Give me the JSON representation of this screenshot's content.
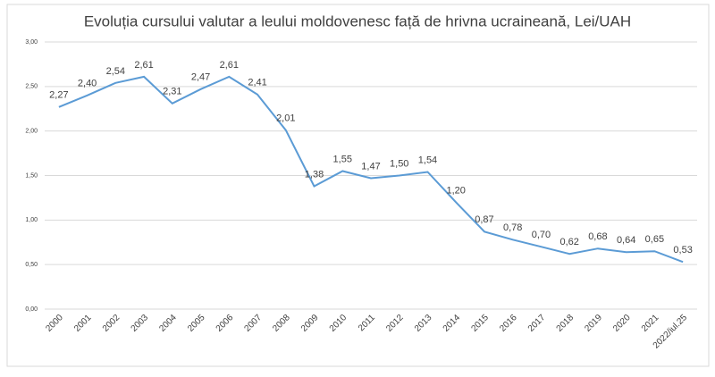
{
  "chart_data": {
    "type": "line",
    "title": "Evoluția cursului valutar a leului moldovenesc față de hrivna ucraineană, Lei/UAH",
    "categories": [
      "2000",
      "2001",
      "2002",
      "2003",
      "2004",
      "2005",
      "2006",
      "2007",
      "2008",
      "2009",
      "2010",
      "2011",
      "2012",
      "2013",
      "2014",
      "2015",
      "2016",
      "2017",
      "2018",
      "2019",
      "2020",
      "2021",
      "2022/iul.25"
    ],
    "series": [
      {
        "color": "#5b9bd5",
        "values": [
          2.27,
          2.4,
          2.54,
          2.61,
          2.31,
          2.47,
          2.61,
          2.41,
          2.01,
          1.38,
          1.55,
          1.47,
          1.5,
          1.54,
          1.2,
          0.87,
          0.78,
          0.7,
          0.62,
          0.68,
          0.64,
          0.65,
          0.53
        ],
        "value_labels": [
          "2,27",
          "2,40",
          "2,54",
          "2,61",
          "2,31",
          "2,47",
          "2,61",
          "2,41",
          "2,01",
          "1,38",
          "1,55",
          "1,47",
          "1,50",
          "1,54",
          "1,20",
          "0,87",
          "0,78",
          "0,70",
          "0,62",
          "0,68",
          "0,64",
          "0,65",
          "0,53"
        ]
      }
    ],
    "ylim": [
      0,
      3
    ],
    "yticks": [
      {
        "value": 0,
        "label": "0,00"
      },
      {
        "value": 0.5,
        "label": "0,50"
      },
      {
        "value": 1,
        "label": "1,00"
      },
      {
        "value": 1.5,
        "label": "1,50"
      },
      {
        "value": 2,
        "label": "2,00"
      },
      {
        "value": 2.5,
        "label": "2,50"
      },
      {
        "value": 3,
        "label": "3,00"
      }
    ],
    "grid": true
  }
}
